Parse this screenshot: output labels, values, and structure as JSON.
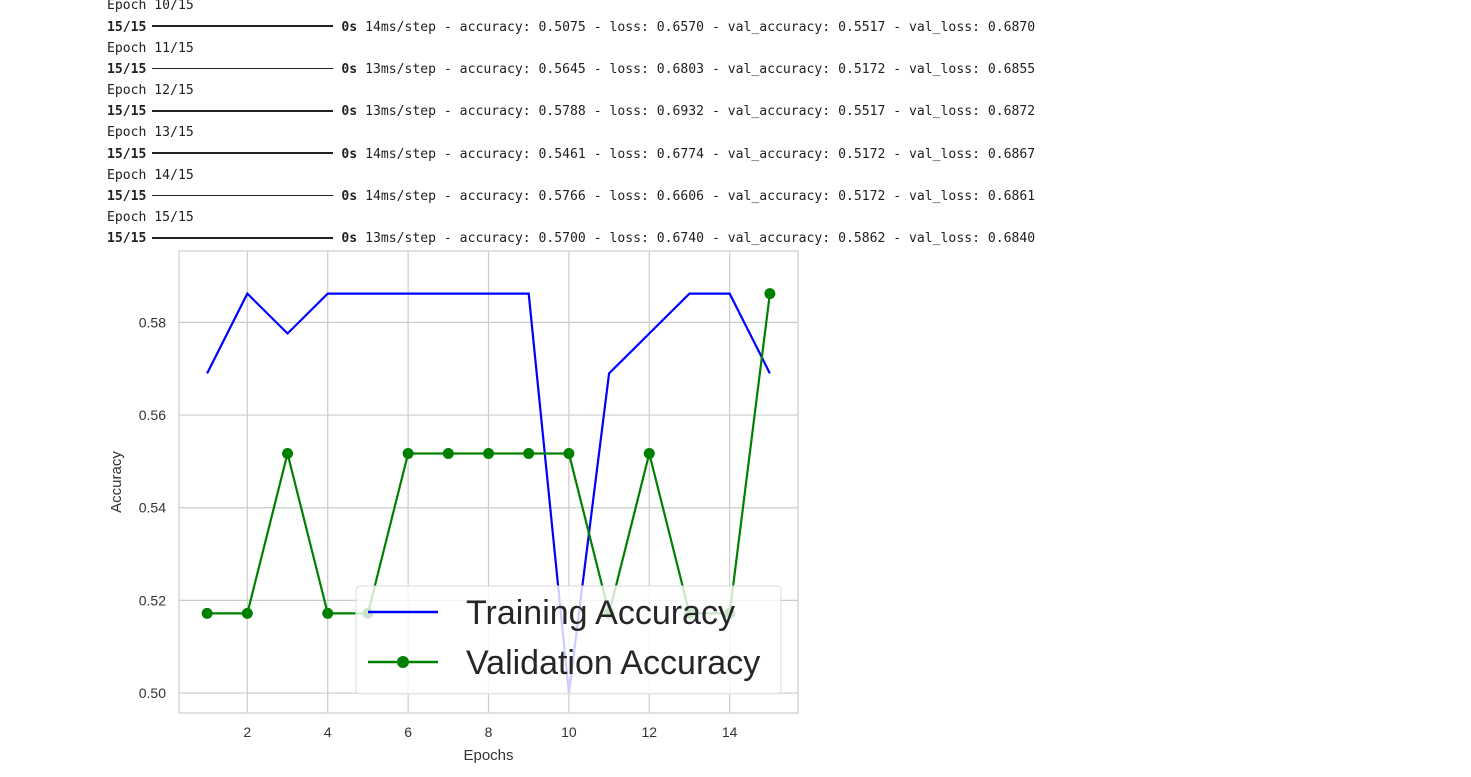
{
  "log": {
    "partial_top": "Epoch 10/15",
    "lines": [
      {
        "type": "step",
        "progress": "15/15",
        "time": "0s",
        "rest": " 14ms/step - accuracy: 0.5075 - loss: 0.6570 - val_accuracy: 0.5517 - val_loss: 0.6870"
      },
      {
        "type": "epoch",
        "text": "Epoch 11/15"
      },
      {
        "type": "step",
        "progress": "15/15",
        "time": "0s",
        "rest": " 13ms/step - accuracy: 0.5645 - loss: 0.6803 - val_accuracy: 0.5172 - val_loss: 0.6855"
      },
      {
        "type": "epoch",
        "text": "Epoch 12/15"
      },
      {
        "type": "step",
        "progress": "15/15",
        "time": "0s",
        "rest": " 13ms/step - accuracy: 0.5788 - loss: 0.6932 - val_accuracy: 0.5517 - val_loss: 0.6872"
      },
      {
        "type": "epoch",
        "text": "Epoch 13/15"
      },
      {
        "type": "step",
        "progress": "15/15",
        "time": "0s",
        "rest": " 14ms/step - accuracy: 0.5461 - loss: 0.6774 - val_accuracy: 0.5172 - val_loss: 0.6867"
      },
      {
        "type": "epoch",
        "text": "Epoch 14/15"
      },
      {
        "type": "step",
        "progress": "15/15",
        "time": "0s",
        "rest": " 14ms/step - accuracy: 0.5766 - loss: 0.6606 - val_accuracy: 0.5172 - val_loss: 0.6861"
      },
      {
        "type": "epoch",
        "text": "Epoch 15/15"
      },
      {
        "type": "step",
        "progress": "15/15",
        "time": "0s",
        "rest": " 13ms/step - accuracy: 0.5700 - loss: 0.6740 - val_accuracy: 0.5862 - val_loss: 0.6840"
      }
    ]
  },
  "chart_data": {
    "type": "line",
    "xlabel": "Epochs",
    "ylabel": "Accuracy",
    "xlim": [
      0.3,
      15.7
    ],
    "ylim": [
      0.4957,
      0.5954
    ],
    "xticks": [
      2,
      4,
      6,
      8,
      10,
      12,
      14
    ],
    "yticks": [
      0.5,
      0.52,
      0.54,
      0.56,
      0.58
    ],
    "ytick_labels": [
      "0.50",
      "0.52",
      "0.54",
      "0.56",
      "0.58"
    ],
    "grid": true,
    "legend": "lower-right",
    "x": [
      1,
      2,
      3,
      4,
      5,
      6,
      7,
      8,
      9,
      10,
      11,
      12,
      13,
      14,
      15
    ],
    "series": [
      {
        "name": "Training Accuracy",
        "color": "#0000ff",
        "marker": "none",
        "values": [
          0.569,
          0.5862,
          0.5776,
          0.5862,
          0.5862,
          0.5862,
          0.5862,
          0.5862,
          0.5862,
          0.5,
          0.569,
          0.5776,
          0.5862,
          0.5862,
          0.569
        ]
      },
      {
        "name": "Validation Accuracy",
        "color": "#008000",
        "marker": "circle",
        "values": [
          0.5172,
          0.5172,
          0.5517,
          0.5172,
          0.5172,
          0.5517,
          0.5517,
          0.5517,
          0.5517,
          0.5517,
          0.5172,
          0.5517,
          0.5172,
          0.5172,
          0.5862
        ]
      }
    ]
  }
}
